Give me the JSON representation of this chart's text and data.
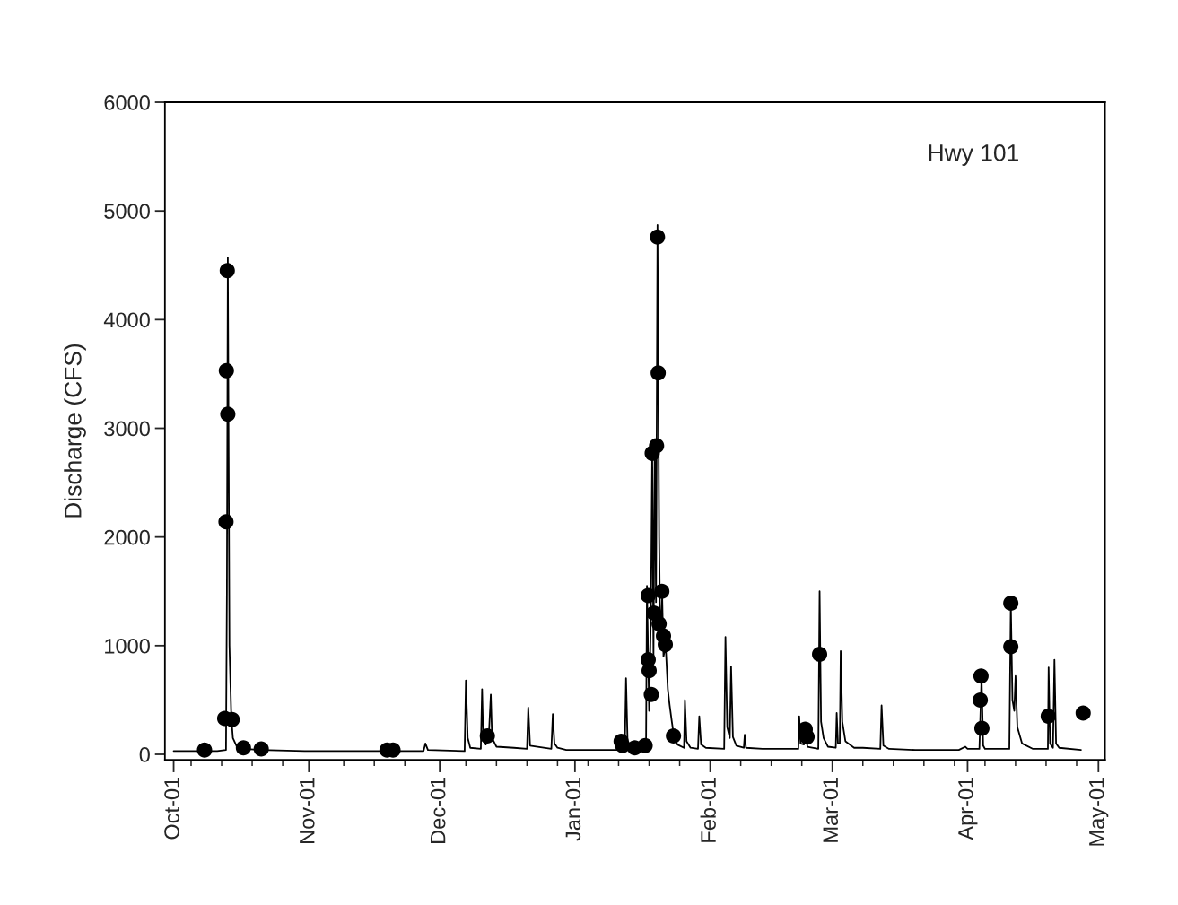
{
  "chart_data": {
    "type": "line",
    "ylabel": "Discharge (CFS)",
    "annotations": [
      "Hwy 101"
    ],
    "xlim": [
      "2000-09-29",
      "2001-05-02T12:00"
    ],
    "ylim": [
      -50,
      6000
    ],
    "yticks": [
      0,
      1000,
      2000,
      3000,
      4000,
      5000,
      6000
    ],
    "xticks": [
      {
        "value": "2000-10-01",
        "label": "Oct-01"
      },
      {
        "value": "2000-11-01",
        "label": "Nov-01"
      },
      {
        "value": "2000-12-01",
        "label": "Dec-01"
      },
      {
        "value": "2001-01-01",
        "label": "Jan-01"
      },
      {
        "value": "2001-02-01",
        "label": "Feb-01"
      },
      {
        "value": "2001-03-01",
        "label": "Mar-01"
      },
      {
        "value": "2001-04-01",
        "label": "Apr-01"
      },
      {
        "value": "2001-05-01",
        "label": "May-01"
      },
      {
        "value": "2000-10-05",
        "label": null
      },
      {
        "value": "2000-10-12",
        "label": null
      },
      {
        "value": "2000-10-19",
        "label": null
      },
      {
        "value": "2000-10-26",
        "label": null
      },
      {
        "value": "2000-11-09",
        "label": null
      },
      {
        "value": "2000-11-16",
        "label": null
      },
      {
        "value": "2000-11-23",
        "label": null
      },
      {
        "value": "2000-12-07",
        "label": null
      },
      {
        "value": "2000-12-14",
        "label": null
      },
      {
        "value": "2000-12-21",
        "label": null
      },
      {
        "value": "2000-12-28",
        "label": null
      },
      {
        "value": "2001-01-04",
        "label": null
      },
      {
        "value": "2001-01-11",
        "label": null
      },
      {
        "value": "2001-01-18",
        "label": null
      },
      {
        "value": "2001-01-25",
        "label": null
      },
      {
        "value": "2001-02-08",
        "label": null
      },
      {
        "value": "2001-02-15",
        "label": null
      },
      {
        "value": "2001-02-22",
        "label": null
      },
      {
        "value": "2001-03-08",
        "label": null
      },
      {
        "value": "2001-03-15",
        "label": null
      },
      {
        "value": "2001-03-22",
        "label": null
      },
      {
        "value": "2001-03-29",
        "label": null
      },
      {
        "value": "2001-04-05",
        "label": null
      },
      {
        "value": "2001-04-12",
        "label": null
      },
      {
        "value": "2001-04-19",
        "label": null
      },
      {
        "value": "2001-04-26",
        "label": null
      }
    ],
    "grid": false,
    "series": [
      {
        "color": "#000000",
        "line_style": "solid",
        "marker": "none",
        "x": [
          "2000-10-01",
          "2000-10-06",
          "2000-10-11",
          "2000-10-13",
          "2000-10-13T05:00",
          "2000-10-13T10:00",
          "2000-10-13T14:00",
          "2000-10-13T19:00",
          "2000-10-14T05:00",
          "2000-10-14T14:00",
          "2000-10-15T12:00",
          "2000-10-17",
          "2000-10-21",
          "2000-10-31",
          "2000-11-10",
          "2000-11-20",
          "2000-11-27T07:00",
          "2000-11-27T17:00",
          "2000-11-28T07:00",
          "2000-12-06T17:00",
          "2000-12-07",
          "2000-12-07T10:00",
          "2000-12-08",
          "2000-12-10T10:00",
          "2000-12-10T17:00",
          "2000-12-11",
          "2000-12-11T14:00",
          "2000-12-12T07:00",
          "2000-12-12T17:00",
          "2000-12-13",
          "2000-12-14",
          "2000-12-18",
          "2000-12-21",
          "2000-12-21T07:00",
          "2000-12-21T17:00",
          "2000-12-26T14:00",
          "2000-12-26T22:00",
          "2000-12-27T07:00",
          "2000-12-28",
          "2000-12-30",
          "2001-01-11",
          "2001-01-12T10:00",
          "2001-01-12T17:00",
          "2001-01-13T02:00",
          "2001-01-17T07:00",
          "2001-01-17T12:00",
          "2001-01-18",
          "2001-01-18T10:00",
          "2001-01-18T17:00",
          "2001-01-19",
          "2001-01-19T07:00",
          "2001-01-19T14:00",
          "2001-01-19T22:00",
          "2001-01-20T07:00",
          "2001-01-20T14:00",
          "2001-01-21",
          "2001-01-21T07:00",
          "2001-01-21T19:00",
          "2001-01-22T07:00",
          "2001-01-22T17:00",
          "2001-01-23T05:00",
          "2001-01-23T17:00",
          "2001-01-24T12:00",
          "2001-01-26",
          "2001-01-26T05:00",
          "2001-01-26T14:00",
          "2001-01-27T12:00",
          "2001-01-29T05:00",
          "2001-01-29T12:00",
          "2001-01-29T22:00",
          "2001-01-31",
          "2001-02-04T05:00",
          "2001-02-04T12:00",
          "2001-02-04T22:00",
          "2001-02-05T12:00",
          "2001-02-05T19:00",
          "2001-02-06T05:00",
          "2001-02-07",
          "2001-02-08T17:00",
          "2001-02-08T22:00",
          "2001-02-09T05:00",
          "2001-02-13",
          "2001-02-21T05:00",
          "2001-02-21T10:00",
          "2001-02-21T17:00",
          "2001-02-22T12:00",
          "2001-02-22T19:00",
          "2001-02-23T07:00",
          "2001-02-25T19:00",
          "2001-02-26T02:00",
          "2001-02-26T10:00",
          "2001-02-27",
          "2001-02-28",
          "2001-03-01T19:00",
          "2001-03-02",
          "2001-03-02T07:00",
          "2001-03-02T17:00",
          "2001-03-02T22:00",
          "2001-03-03T07:00",
          "2001-03-04",
          "2001-03-06",
          "2001-03-08",
          "2001-03-12",
          "2001-03-12T07:00",
          "2001-03-12T17:00",
          "2001-03-14",
          "2001-03-20",
          "2001-03-30",
          "2001-03-31T12:00",
          "2001-04-01",
          "2001-04-03T17:00",
          "2001-04-04T05:00",
          "2001-04-04T14:00",
          "2001-04-05",
          "2001-04-10T14:00",
          "2001-04-10T22:00",
          "2001-04-11T07:00",
          "2001-04-11T17:00",
          "2001-04-12",
          "2001-04-12T10:00",
          "2001-04-13T12:00",
          "2001-04-16",
          "2001-04-19T10:00",
          "2001-04-19T14:00",
          "2001-04-19T22:00",
          "2001-04-20T14:00",
          "2001-04-20T22:00",
          "2001-04-21T07:00",
          "2001-04-22",
          "2001-04-27"
        ],
        "values": [
          30,
          30,
          30,
          40,
          1500,
          4570,
          3000,
          1000,
          350,
          150,
          70,
          50,
          40,
          30,
          30,
          30,
          30,
          100,
          40,
          30,
          680,
          150,
          60,
          50,
          600,
          120,
          90,
          200,
          550,
          150,
          70,
          60,
          50,
          430,
          80,
          50,
          370,
          100,
          60,
          40,
          40,
          50,
          700,
          80,
          60,
          1550,
          400,
          1300,
          2800,
          900,
          2900,
          1400,
          4870,
          2000,
          1000,
          1450,
          900,
          1000,
          600,
          450,
          300,
          160,
          90,
          60,
          500,
          120,
          60,
          50,
          350,
          90,
          60,
          50,
          1080,
          250,
          150,
          810,
          160,
          80,
          60,
          180,
          60,
          50,
          50,
          350,
          100,
          90,
          260,
          70,
          50,
          1500,
          300,
          150,
          70,
          60,
          380,
          100,
          100,
          950,
          300,
          120,
          60,
          60,
          50,
          450,
          80,
          50,
          40,
          40,
          70,
          50,
          50,
          720,
          80,
          50,
          50,
          1400,
          500,
          400,
          720,
          250,
          100,
          50,
          50,
          800,
          100,
          60,
          870,
          100,
          60,
          40
        ]
      },
      {
        "type": "scatter",
        "color": "#000000",
        "marker": "circle",
        "x": [
          "2000-10-08T02:00",
          "2000-10-12T17:00",
          "2000-10-14T10:00",
          "2000-10-13",
          "2000-10-13T10:00",
          "2000-10-13T02:00",
          "2000-10-13T07:00",
          "2000-10-17",
          "2000-10-21T02:00",
          "2000-11-18T22:00",
          "2000-11-20T07:00",
          "2000-12-11T22:00",
          "2001-01-11T14:00",
          "2001-01-11T22:00",
          "2001-01-14T17:00",
          "2001-01-17T02:00",
          "2001-01-17T19:00",
          "2001-01-17T19:00",
          "2001-01-18",
          "2001-01-18T12:00",
          "2001-01-18T17:00",
          "2001-01-19T02:00",
          "2001-01-19T17:00",
          "2001-01-20T02:00",
          "2001-01-19T22:00",
          "2001-01-20T07:00",
          "2001-01-20T22:00",
          "2001-01-21T07:00",
          "2001-01-21T17:00",
          "2001-01-23T14:00",
          "2001-02-22T19:00",
          "2001-02-23T05:00",
          "2001-02-26T02:00",
          "2001-04-04T02:00",
          "2001-04-03T22:00",
          "2001-04-04T07:00",
          "2001-04-10T22:00",
          "2001-04-10T22:00",
          "2001-04-19T12:00",
          "2001-04-27T12:00"
        ],
        "values": [
          40,
          330,
          320,
          2140,
          3130,
          3530,
          4450,
          60,
          50,
          40,
          40,
          170,
          120,
          80,
          60,
          80,
          1460,
          870,
          770,
          550,
          2770,
          1300,
          2840,
          3510,
          4760,
          1200,
          1500,
          1090,
          1010,
          170,
          230,
          160,
          920,
          720,
          500,
          240,
          1390,
          990,
          350,
          380
        ]
      }
    ]
  }
}
